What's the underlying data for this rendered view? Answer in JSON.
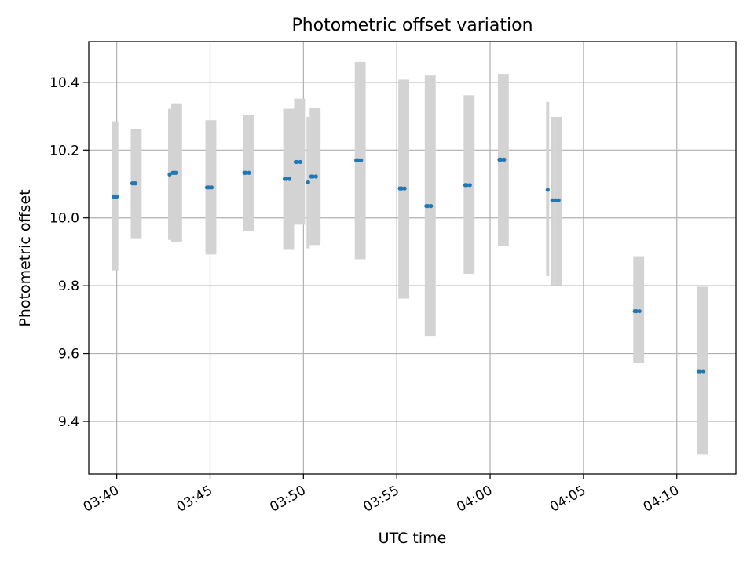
{
  "chart_data": {
    "type": "scatter",
    "title": "Photometric offset variation",
    "xlabel": "UTC time",
    "ylabel": "Photometric offset",
    "x_ticks": [
      "03:40",
      "03:45",
      "03:50",
      "03:55",
      "04:00",
      "04:05",
      "04:10"
    ],
    "y_ticks": [
      "9.4",
      "9.6",
      "9.8",
      "10.0",
      "10.2",
      "10.4"
    ],
    "xlim": [
      "03:38:30",
      "04:13:10"
    ],
    "ylim": [
      9.245,
      10.52
    ],
    "grid": true,
    "colors": {
      "points": "#1f77b4",
      "error_bands": "#d3d3d3",
      "grid": "#b0b0b0"
    },
    "error_bands": [
      {
        "x_start": "03:39:45",
        "x_end": "03:40:05",
        "low": 9.845,
        "high": 10.285
      },
      {
        "x_start": "03:40:45",
        "x_end": "03:41:20",
        "low": 9.94,
        "high": 10.262
      },
      {
        "x_start": "03:42:45",
        "x_end": "03:42:55",
        "low": 9.935,
        "high": 10.322
      },
      {
        "x_start": "03:42:55",
        "x_end": "03:43:30",
        "low": 9.93,
        "high": 10.338
      },
      {
        "x_start": "03:44:45",
        "x_end": "03:45:20",
        "low": 9.892,
        "high": 10.288
      },
      {
        "x_start": "03:46:45",
        "x_end": "03:47:20",
        "low": 9.962,
        "high": 10.305
      },
      {
        "x_start": "03:48:55",
        "x_end": "03:49:30",
        "low": 9.908,
        "high": 10.322
      },
      {
        "x_start": "03:49:30",
        "x_end": "03:50:05",
        "low": 9.98,
        "high": 10.352
      },
      {
        "x_start": "03:50:10",
        "x_end": "03:50:20",
        "low": 9.91,
        "high": 10.298
      },
      {
        "x_start": "03:50:20",
        "x_end": "03:50:55",
        "low": 9.92,
        "high": 10.325
      },
      {
        "x_start": "03:52:45",
        "x_end": "03:53:20",
        "low": 9.878,
        "high": 10.46
      },
      {
        "x_start": "03:55:05",
        "x_end": "03:55:40",
        "low": 9.762,
        "high": 10.408
      },
      {
        "x_start": "03:56:30",
        "x_end": "03:57:05",
        "low": 9.652,
        "high": 10.42
      },
      {
        "x_start": "03:58:35",
        "x_end": "03:59:10",
        "low": 9.835,
        "high": 10.362
      },
      {
        "x_start": "04:00:25",
        "x_end": "04:01:00",
        "low": 9.918,
        "high": 10.425
      },
      {
        "x_start": "04:03:00",
        "x_end": "04:03:10",
        "low": 9.828,
        "high": 10.342
      },
      {
        "x_start": "04:03:15",
        "x_end": "04:03:25",
        "low": 9.802,
        "high": 10.298
      },
      {
        "x_start": "04:03:25",
        "x_end": "04:03:50",
        "low": 9.802,
        "high": 10.298
      },
      {
        "x_start": "04:07:40",
        "x_end": "04:08:15",
        "low": 9.572,
        "high": 9.887
      },
      {
        "x_start": "04:11:05",
        "x_end": "04:11:40",
        "low": 9.302,
        "high": 9.797
      }
    ],
    "points": [
      {
        "x": "03:39:50",
        "y": 10.063
      },
      {
        "x": "03:39:55",
        "y": 10.063
      },
      {
        "x": "03:40:00",
        "y": 10.063
      },
      {
        "x": "03:40:50",
        "y": 10.102
      },
      {
        "x": "03:40:55",
        "y": 10.102
      },
      {
        "x": "03:41:00",
        "y": 10.102
      },
      {
        "x": "03:42:50",
        "y": 10.128
      },
      {
        "x": "03:43:00",
        "y": 10.133
      },
      {
        "x": "03:43:05",
        "y": 10.133
      },
      {
        "x": "03:43:10",
        "y": 10.133
      },
      {
        "x": "03:44:50",
        "y": 10.09
      },
      {
        "x": "03:44:55",
        "y": 10.09
      },
      {
        "x": "03:45:05",
        "y": 10.09
      },
      {
        "x": "03:46:50",
        "y": 10.133
      },
      {
        "x": "03:46:55",
        "y": 10.133
      },
      {
        "x": "03:47:05",
        "y": 10.133
      },
      {
        "x": "03:49:00",
        "y": 10.115
      },
      {
        "x": "03:49:05",
        "y": 10.115
      },
      {
        "x": "03:49:15",
        "y": 10.115
      },
      {
        "x": "03:49:35",
        "y": 10.165
      },
      {
        "x": "03:49:40",
        "y": 10.165
      },
      {
        "x": "03:49:50",
        "y": 10.165
      },
      {
        "x": "03:50:15",
        "y": 10.105
      },
      {
        "x": "03:50:25",
        "y": 10.122
      },
      {
        "x": "03:50:30",
        "y": 10.122
      },
      {
        "x": "03:50:40",
        "y": 10.122
      },
      {
        "x": "03:52:50",
        "y": 10.17
      },
      {
        "x": "03:52:55",
        "y": 10.17
      },
      {
        "x": "03:53:05",
        "y": 10.17
      },
      {
        "x": "03:55:10",
        "y": 10.087
      },
      {
        "x": "03:55:15",
        "y": 10.087
      },
      {
        "x": "03:55:25",
        "y": 10.087
      },
      {
        "x": "03:56:35",
        "y": 10.035
      },
      {
        "x": "03:56:40",
        "y": 10.035
      },
      {
        "x": "03:56:50",
        "y": 10.035
      },
      {
        "x": "03:58:40",
        "y": 10.097
      },
      {
        "x": "03:58:45",
        "y": 10.097
      },
      {
        "x": "03:58:55",
        "y": 10.097
      },
      {
        "x": "04:00:30",
        "y": 10.172
      },
      {
        "x": "04:00:35",
        "y": 10.172
      },
      {
        "x": "04:00:45",
        "y": 10.172
      },
      {
        "x": "04:03:05",
        "y": 10.083
      },
      {
        "x": "04:03:20",
        "y": 10.052
      },
      {
        "x": "04:03:30",
        "y": 10.052
      },
      {
        "x": "04:03:40",
        "y": 10.052
      },
      {
        "x": "04:07:45",
        "y": 9.725
      },
      {
        "x": "04:07:50",
        "y": 9.725
      },
      {
        "x": "04:08:00",
        "y": 9.725
      },
      {
        "x": "04:11:10",
        "y": 9.548
      },
      {
        "x": "04:11:15",
        "y": 9.548
      },
      {
        "x": "04:11:25",
        "y": 9.548
      }
    ]
  }
}
